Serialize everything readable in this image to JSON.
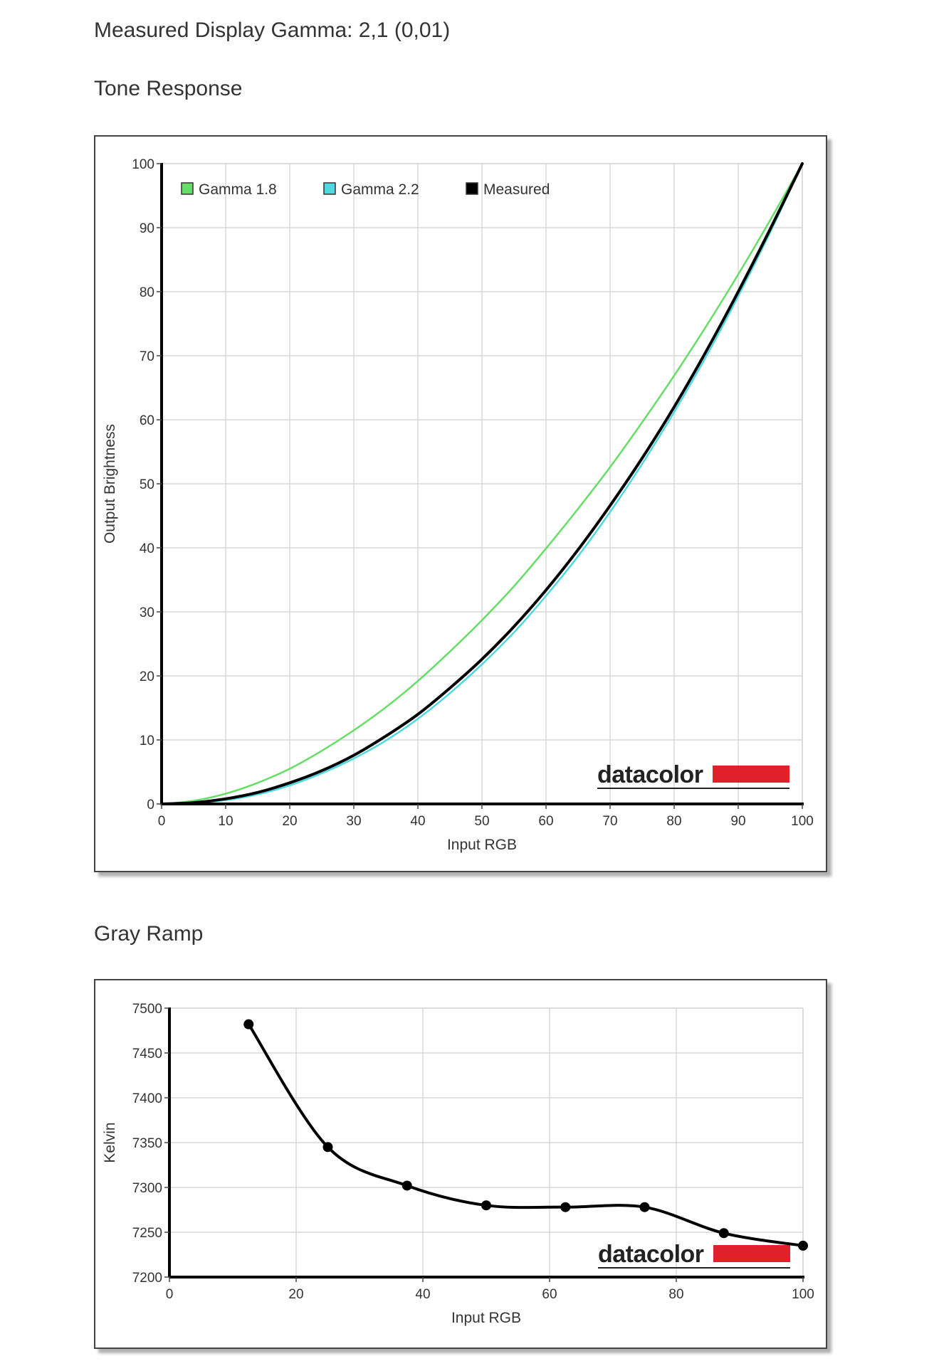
{
  "page": {
    "measured_gamma_label": "Measured Display Gamma: 2,1 (0,01)",
    "tone_response_title": "Tone Response",
    "gray_ramp_title": "Gray Ramp"
  },
  "colors": {
    "gamma18": "#66dd66",
    "gamma22": "#4fd8e0",
    "measured": "#000000",
    "grid": "#d8d8d8",
    "brand_red": "#e0202a"
  },
  "chart_data": [
    {
      "type": "line",
      "title": "",
      "xlabel": "Input RGB",
      "ylabel": "Output Brightness",
      "xlim": [
        0,
        100
      ],
      "ylim": [
        0,
        100
      ],
      "xticks": [
        "0",
        "10",
        "20",
        "30",
        "40",
        "50",
        "60",
        "70",
        "80",
        "90",
        "100"
      ],
      "yticks": [
        "0",
        "10",
        "20",
        "30",
        "40",
        "50",
        "60",
        "70",
        "80",
        "90",
        "100"
      ],
      "grid": true,
      "legend_position": "top-left",
      "logo": "datacolor",
      "series": [
        {
          "name": "Gamma 1.8",
          "color": "#66dd66",
          "x": [
            0,
            5,
            10,
            15,
            20,
            25,
            30,
            35,
            40,
            45,
            50,
            55,
            60,
            65,
            70,
            75,
            80,
            85,
            90,
            95,
            100
          ],
          "y": [
            0,
            0.5,
            1.6,
            3.3,
            5.5,
            8.3,
            11.5,
            15.1,
            19.2,
            23.8,
            28.7,
            34.0,
            39.9,
            46.1,
            52.6,
            59.6,
            66.9,
            74.6,
            82.7,
            91.2,
            100
          ]
        },
        {
          "name": "Gamma 2.2",
          "color": "#4fd8e0",
          "x": [
            0,
            5,
            10,
            15,
            20,
            25,
            30,
            35,
            40,
            45,
            50,
            55,
            60,
            65,
            70,
            75,
            80,
            85,
            90,
            95,
            100
          ],
          "y": [
            0,
            0.1,
            0.6,
            1.5,
            2.9,
            4.8,
            7.1,
            9.9,
            13.3,
            17.3,
            21.8,
            26.8,
            32.5,
            38.7,
            45.6,
            53.1,
            61.2,
            69.9,
            79.3,
            89.3,
            100
          ]
        },
        {
          "name": "Measured",
          "color": "#000000",
          "x": [
            0,
            5,
            10,
            15,
            20,
            25,
            30,
            35,
            40,
            45,
            50,
            55,
            60,
            65,
            70,
            75,
            80,
            85,
            90,
            95,
            100
          ],
          "y": [
            0,
            0.2,
            0.8,
            1.8,
            3.3,
            5.2,
            7.6,
            10.6,
            14.0,
            18.1,
            22.6,
            27.7,
            33.4,
            39.7,
            46.6,
            54.0,
            62.0,
            70.7,
            80.0,
            89.8,
            100
          ]
        }
      ]
    },
    {
      "type": "line",
      "title": "",
      "xlabel": "Input RGB",
      "ylabel": "Kelvin",
      "xlim": [
        0,
        100
      ],
      "ylim": [
        7200,
        7500
      ],
      "xticks": [
        "0",
        "20",
        "40",
        "60",
        "80",
        "100"
      ],
      "yticks": [
        "7200",
        "7250",
        "7300",
        "7350",
        "7400",
        "7450",
        "7500"
      ],
      "grid": true,
      "logo": "datacolor",
      "series": [
        {
          "name": "",
          "color": "#000000",
          "x": [
            12.5,
            25,
            37.5,
            50,
            62.5,
            75,
            87.5,
            100
          ],
          "y": [
            7482,
            7345,
            7302,
            7280,
            7278,
            7278,
            7249,
            7235
          ]
        }
      ]
    }
  ]
}
